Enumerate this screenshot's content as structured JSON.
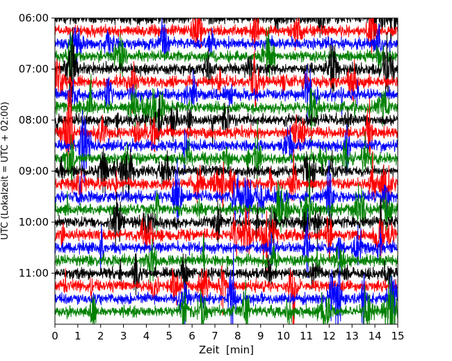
{
  "chart_data": {
    "type": "line",
    "title": "",
    "xlabel": "Zeit  [min]",
    "ylabel": "UTC (Lokalzeit = UTC + 02:00)",
    "xlim": [
      0,
      15
    ],
    "ylim": [
      "06:00",
      "12:00"
    ],
    "x_ticks": [
      "0",
      "1",
      "2",
      "3",
      "4",
      "5",
      "6",
      "7",
      "8",
      "9",
      "10",
      "11",
      "12",
      "13",
      "14",
      "15"
    ],
    "y_ticks": [
      "06:00",
      "07:00",
      "08:00",
      "09:00",
      "10:00",
      "11:00"
    ],
    "trace_colors_cycle": [
      "#000000",
      "#ff0000",
      "#0000ff",
      "#008000"
    ],
    "trace_interval_minutes": 15,
    "grid": false,
    "legend": "none",
    "series": [
      {
        "start": "06:00",
        "color": "#000000"
      },
      {
        "start": "06:15",
        "color": "#ff0000"
      },
      {
        "start": "06:30",
        "color": "#0000ff"
      },
      {
        "start": "06:45",
        "color": "#008000"
      },
      {
        "start": "07:00",
        "color": "#000000"
      },
      {
        "start": "07:15",
        "color": "#ff0000"
      },
      {
        "start": "07:30",
        "color": "#0000ff"
      },
      {
        "start": "07:45",
        "color": "#008000"
      },
      {
        "start": "08:00",
        "color": "#000000"
      },
      {
        "start": "08:15",
        "color": "#ff0000"
      },
      {
        "start": "08:30",
        "color": "#0000ff"
      },
      {
        "start": "08:45",
        "color": "#008000"
      },
      {
        "start": "09:00",
        "color": "#000000"
      },
      {
        "start": "09:15",
        "color": "#ff0000"
      },
      {
        "start": "09:30",
        "color": "#0000ff"
      },
      {
        "start": "09:45",
        "color": "#008000"
      },
      {
        "start": "10:00",
        "color": "#000000"
      },
      {
        "start": "10:15",
        "color": "#ff0000"
      },
      {
        "start": "10:30",
        "color": "#0000ff"
      },
      {
        "start": "10:45",
        "color": "#008000"
      },
      {
        "start": "11:00",
        "color": "#000000"
      },
      {
        "start": "11:15",
        "color": "#ff0000"
      },
      {
        "start": "11:30",
        "color": "#0000ff"
      },
      {
        "start": "11:45",
        "color": "#008000"
      }
    ]
  }
}
